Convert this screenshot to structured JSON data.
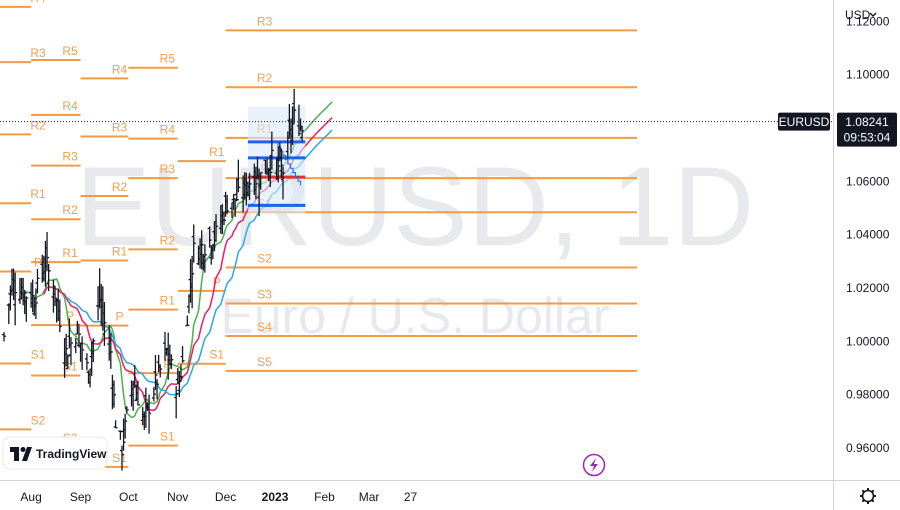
{
  "toolbar": {
    "currency_label": "USD",
    "currency_icon": "chevron-down-icon"
  },
  "watermark": {
    "symbol": "EURUSD, 1D",
    "name": "Euro / U.S. Dollar"
  },
  "branding": {
    "logo_text": "TradingView"
  },
  "price_tag": {
    "symbol": "EURUSD",
    "price": "1.08241",
    "countdown": "09:53:04"
  },
  "icons": {
    "settings": "gear-icon",
    "flash": "lightning-icon"
  },
  "colors": {
    "pivot": "#f39a45",
    "bar": "#131722",
    "ma_fast": "#4caf50",
    "ma_mid": "#e91e63",
    "ma_slow": "#29a9e0",
    "vp_line": "#1e62e6",
    "vp_poc": "#e62e2e",
    "vp_fill": "#dbe9f8"
  },
  "chart_data": {
    "type": "ohlc",
    "yaxis": {
      "ticks": [
        "0.96000",
        "0.98000",
        "1.00000",
        "1.02000",
        "1.04000",
        "1.06000",
        "1.08000",
        "1.10000",
        "1.12000"
      ],
      "range": [
        0.948,
        1.128
      ]
    },
    "xaxis": {
      "ticks": [
        "Aug",
        "Sep",
        "Oct",
        "Nov",
        "Dec",
        "2023",
        "Feb",
        "Mar",
        "27"
      ]
    },
    "moving_averages": [
      "fast",
      "mid",
      "slow"
    ],
    "series_path": [
      [
        "2022-07-15",
        1.002
      ],
      [
        "2022-07-20",
        1.022
      ],
      [
        "2022-07-27",
        1.018
      ],
      [
        "2022-08-03",
        1.016
      ],
      [
        "2022-08-10",
        1.03
      ],
      [
        "2022-08-16",
        1.018
      ],
      [
        "2022-08-23",
        0.996
      ],
      [
        "2022-08-30",
        1.004
      ],
      [
        "2022-09-06",
        0.988
      ],
      [
        "2022-09-13",
        1.016
      ],
      [
        "2022-09-20",
        0.996
      ],
      [
        "2022-09-23",
        0.97
      ],
      [
        "2022-09-27",
        0.96
      ],
      [
        "2022-10-04",
        0.986
      ],
      [
        "2022-10-11",
        0.97
      ],
      [
        "2022-10-18",
        0.984
      ],
      [
        "2022-10-25",
        0.996
      ],
      [
        "2022-11-01",
        0.982
      ],
      [
        "2022-11-04",
        0.992
      ],
      [
        "2022-11-11",
        1.034
      ],
      [
        "2022-11-18",
        1.036
      ],
      [
        "2022-11-25",
        1.04
      ],
      [
        "2022-12-02",
        1.052
      ],
      [
        "2022-12-09",
        1.054
      ],
      [
        "2022-12-16",
        1.06
      ],
      [
        "2022-12-23",
        1.062
      ],
      [
        "2022-12-30",
        1.068
      ],
      [
        "2023-01-06",
        1.064
      ],
      [
        "2023-01-13",
        1.084
      ],
      [
        "2023-01-18",
        1.08
      ]
    ],
    "pivot_periods": [
      {
        "labels": [
          "R4",
          "R3",
          "R2",
          "R1",
          "P",
          "S1",
          "S2"
        ],
        "levels": [
          1.1254,
          1.1047,
          1.0776,
          1.0518,
          1.0262,
          0.9917,
          0.967
        ]
      },
      {
        "labels": [
          "R5",
          "R4",
          "R3",
          "R2",
          "R1",
          "P",
          "S1",
          "S2"
        ],
        "levels": [
          1.1055,
          1.0849,
          1.0659,
          1.0458,
          1.0297,
          1.0061,
          0.9872,
          0.9604
        ]
      },
      {
        "labels": [
          "R4",
          "R3",
          "R2",
          "R1",
          "P",
          "S1"
        ],
        "levels": [
          1.0986,
          1.0768,
          1.0545,
          1.0303,
          1.0059,
          0.9529
        ]
      },
      {
        "labels": [
          "R5",
          "R4",
          "R3",
          "R2",
          "R1",
          "P",
          "S1"
        ],
        "levels": [
          1.1026,
          1.076,
          1.0612,
          1.0345,
          1.0119,
          0.9881,
          0.9609
        ]
      },
      {
        "labels": [
          "R1",
          "P",
          "S1"
        ],
        "levels": [
          1.0676,
          1.0189,
          0.9916
        ]
      },
      {
        "labels": [
          "R3",
          "R2",
          "R1",
          "P",
          "S1",
          "S2",
          "S3",
          "S4",
          "S5"
        ],
        "levels": [
          1.1166,
          1.0953,
          1.0763,
          1.0612,
          1.0484,
          1.0277,
          1.0142,
          1.002,
          0.9889
        ]
      }
    ],
    "volume_profile": {
      "levels": [
        1.0748,
        1.0688,
        1.0616,
        1.051
      ],
      "poc": 1.0616
    }
  }
}
